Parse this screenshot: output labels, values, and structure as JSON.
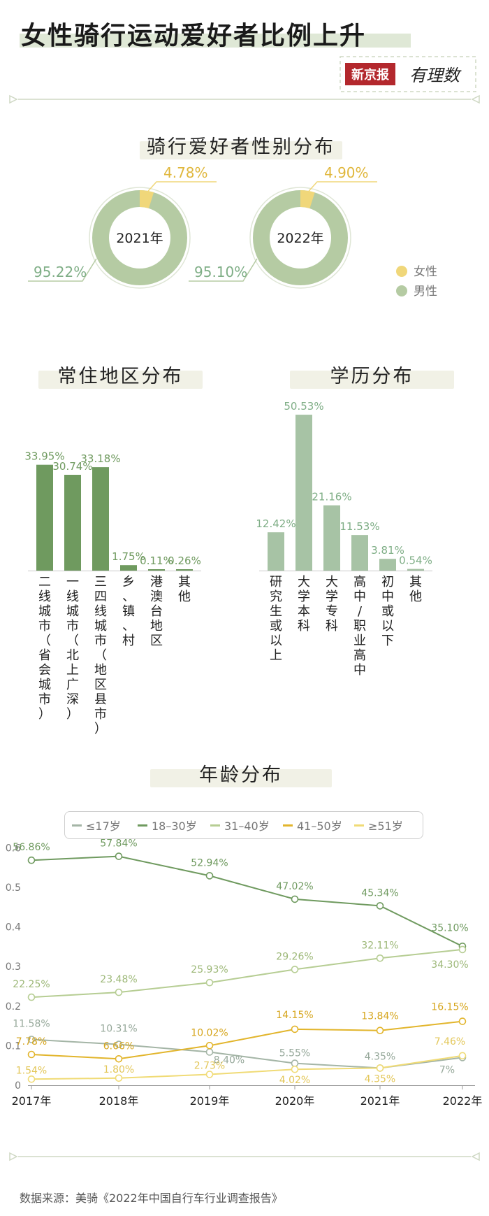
{
  "title": "女性骑行运动爱好者比例上升",
  "logo": {
    "brand": "新京报",
    "column": "有理数"
  },
  "gender": {
    "title": "骑行爱好者性别分布",
    "legend": [
      {
        "name": "女性",
        "color": "#f0d77a"
      },
      {
        "name": "男性",
        "color": "#b5cba3"
      }
    ],
    "donuts": [
      {
        "year": "2021年",
        "female_pct": 4.78,
        "male_pct": 95.22,
        "female_label": "4.78%",
        "male_label": "95.22%"
      },
      {
        "year": "2022年",
        "female_pct": 4.9,
        "male_pct": 95.1,
        "female_label": "4.90%",
        "male_label": "95.10%"
      }
    ]
  },
  "region": {
    "title": "常住地区分布",
    "bar_color": "#6f9a5f",
    "label_color": "#6f9a5f",
    "bars": [
      {
        "label": "33.95%",
        "value": 33.95,
        "category": "二线城市（省会城市）"
      },
      {
        "label": "30.74%",
        "value": 30.74,
        "category": "一线城市（北上广深）"
      },
      {
        "label": "33.18%",
        "value": 33.18,
        "category": "三四线城市（地区县市）"
      },
      {
        "label": "1.75%",
        "value": 1.75,
        "category": "乡、镇、村"
      },
      {
        "label": "0.11%",
        "value": 0.11,
        "category": "港澳台地区"
      },
      {
        "label": "0.26%",
        "value": 0.26,
        "category": "其他"
      }
    ]
  },
  "education": {
    "title": "学历分布",
    "bar_color": "#a7c3a5",
    "label_color": "#7fae86",
    "bars": [
      {
        "label": "12.42%",
        "value": 12.42,
        "category": "研究生或以上"
      },
      {
        "label": "50.53%",
        "value": 50.53,
        "category": "大学本科"
      },
      {
        "label": "21.16%",
        "value": 21.16,
        "category": "大学专科"
      },
      {
        "label": "11.53%",
        "value": 11.53,
        "category": "高中/职业高中"
      },
      {
        "label": "3.81%",
        "value": 3.81,
        "category": "初中或以下"
      },
      {
        "label": "0.54%",
        "value": 0.54,
        "category": "其他"
      }
    ]
  },
  "age": {
    "title": "年龄分布",
    "legend": [
      "≤17岁",
      "18–30岁",
      "31–40岁",
      "41–50岁",
      "≥51岁"
    ]
  },
  "chart_data": {
    "type": "line",
    "title": "年龄分布",
    "x": [
      "2017年",
      "2018年",
      "2019年",
      "2020年",
      "2021年",
      "2022年"
    ],
    "yticks": [
      "0",
      "0.1",
      "0.2",
      "0.3",
      "0.4",
      "0.5",
      "0.6"
    ],
    "ylim": [
      0,
      0.6
    ],
    "grid": false,
    "legend_position": "top",
    "series": [
      {
        "name": "≤17岁",
        "color": "#a4b5a6",
        "values": [
          0.1158,
          0.1031,
          0.084,
          0.0555,
          0.0435,
          0.07
        ],
        "labels": [
          "11.58%",
          "10.31%",
          "8.40%",
          "5.55%",
          "4.35%",
          "7%"
        ]
      },
      {
        "name": "18–30岁",
        "color": "#6f9a5f",
        "values": [
          0.5686,
          0.5784,
          0.5294,
          0.4702,
          0.4534,
          0.351
        ],
        "labels": [
          "56.86%",
          "57.84%",
          "52.94%",
          "47.02%",
          "45.34%",
          "35.10%"
        ]
      },
      {
        "name": "31–40岁",
        "color": "#b6cd93",
        "values": [
          0.2225,
          0.2348,
          0.2593,
          0.2926,
          0.3211,
          0.343
        ],
        "labels": [
          "22.25%",
          "23.48%",
          "25.93%",
          "29.26%",
          "32.11%",
          "34.30%"
        ]
      },
      {
        "name": "41–50岁",
        "color": "#e2b52c",
        "values": [
          0.0778,
          0.0666,
          0.1002,
          0.1415,
          0.1384,
          0.1615
        ],
        "labels": [
          "7.78%",
          "6.66%",
          "10.02%",
          "14.15%",
          "13.84%",
          "16.15%"
        ]
      },
      {
        "name": "≥51岁",
        "color": "#f0db76",
        "values": [
          0.0154,
          0.018,
          0.0273,
          0.0402,
          0.0435,
          0.0746
        ],
        "labels": [
          "1.54%",
          "1.80%",
          "2.73%",
          "4.02%",
          "4.35%",
          "7.46%"
        ]
      }
    ]
  },
  "source": "数据来源：美骑《2022年中国自行车行业调查报告》"
}
